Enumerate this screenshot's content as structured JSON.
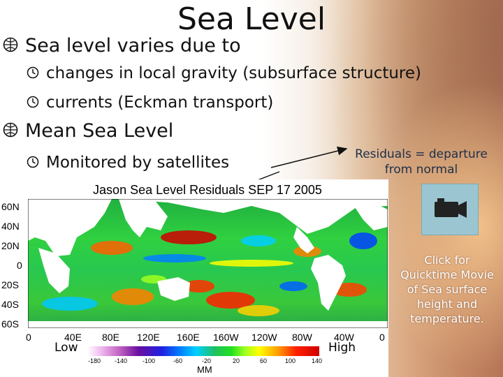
{
  "title": "Sea Level",
  "bullets": {
    "b1": "Sea level varies due to",
    "b2": "changes in local gravity (subsurface structure)",
    "b3": "currents (Eckman transport)",
    "b4": "Mean Sea Level",
    "b5": "Monitored by satellites"
  },
  "note": "Residuals = departure from normal",
  "video_icon": "video-camera-icon",
  "click_note": "Click for Quicktime Movie of Sea surface height and temperature.",
  "figure": {
    "title": "Jason Sea Level Residuals  SEP 17 2005",
    "lat_labels": [
      "60N",
      "40N",
      "20N",
      "0",
      "20S",
      "40S",
      "60S"
    ],
    "lon_labels": [
      "0",
      "40E",
      "80E",
      "120E",
      "160E",
      "160W",
      "120W",
      "80W",
      "40W",
      "0"
    ],
    "low": "Low",
    "high": "High",
    "colorbar_ticks": [
      "-180",
      "-140",
      "-100",
      "-60",
      "-20",
      "20",
      "60",
      "100",
      "140"
    ],
    "units": "MM"
  },
  "colors": {
    "title": "#111111",
    "note": "#1d2f4a",
    "camera_box": "#9bc6d1"
  }
}
